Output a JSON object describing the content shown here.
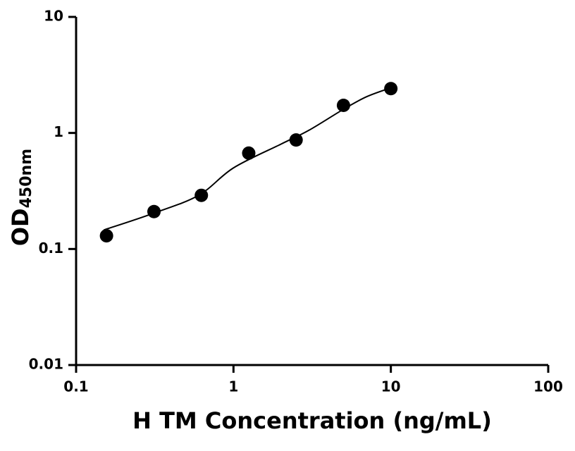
{
  "chart_data": {
    "type": "scatter",
    "x_label": "H TM Concentration (ng/mL)",
    "y_label": "OD",
    "y_label_sub": "450nm",
    "x": [
      0.156,
      0.3125,
      0.625,
      1.25,
      2.5,
      5,
      10
    ],
    "values": [
      0.13,
      0.21,
      0.29,
      0.67,
      0.87,
      1.73,
      2.41
    ],
    "color": "#000000",
    "curve": {
      "x": [
        0.15,
        0.3,
        0.6,
        1,
        2,
        3,
        5,
        7,
        10
      ],
      "values": [
        0.146,
        0.2,
        0.29,
        0.5,
        0.8,
        1.05,
        1.6,
        2.05,
        2.45
      ]
    },
    "x_log": true,
    "y_log": true,
    "xlim": [
      0.1,
      100
    ],
    "xticks": [
      0.1,
      1,
      10,
      100
    ],
    "ylim": [
      0.01,
      10
    ],
    "yticks": [
      0.01,
      0.1,
      1,
      10
    ]
  }
}
